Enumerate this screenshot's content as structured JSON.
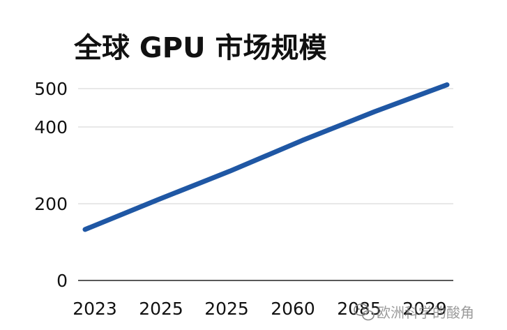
{
  "chart_data": {
    "type": "line",
    "title": "全球 GPU 市场规模",
    "categories": [
      "2023",
      "2025",
      "2025",
      "2060",
      "2085",
      "2029"
    ],
    "series": [
      {
        "name": "全球 GPU 市场规模",
        "values": [
          133,
          210,
          285,
          365,
          440,
          510
        ],
        "color": "#1f57a4"
      }
    ],
    "yticks": [
      0,
      200,
      400,
      500
    ],
    "ylim": [
      0,
      500
    ],
    "xlabel": "",
    "ylabel": "",
    "grid": true,
    "legend": "none"
  },
  "watermark": {
    "text": "欧洲科学的酸角",
    "icon": "wechat-logo-icon"
  }
}
